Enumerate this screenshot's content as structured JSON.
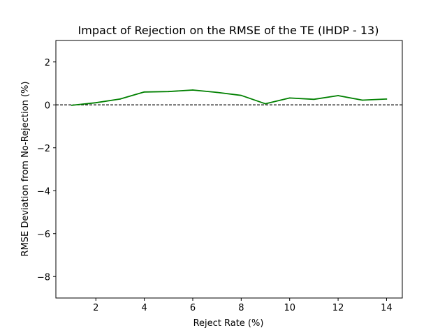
{
  "chart_data": {
    "type": "line",
    "title": "Impact of Rejection on the RMSE of the TE (IHDP - 13)",
    "xlabel": "Reject Rate (%)",
    "ylabel": "RMSE Deviation from No-Rejection (%)",
    "xlim": [
      0.35,
      14.65
    ],
    "ylim": [
      -9,
      3
    ],
    "xticks": [
      2,
      4,
      6,
      8,
      10,
      12,
      14
    ],
    "yticks": [
      -8,
      -6,
      -4,
      -2,
      0,
      2
    ],
    "xtick_labels": [
      "2",
      "4",
      "6",
      "8",
      "10",
      "12",
      "14"
    ],
    "ytick_labels": [
      "−8",
      "−6",
      "−4",
      "−2",
      "0",
      "2"
    ],
    "grid": false,
    "reference_line": {
      "y": 0,
      "style": "dashed",
      "color": "#000000"
    },
    "series": [
      {
        "color": "#008000",
        "x": [
          1,
          2,
          3,
          4,
          5,
          6,
          7,
          8,
          9,
          10,
          11,
          12,
          13,
          14
        ],
        "y": [
          -0.02,
          0.1,
          0.27,
          0.6,
          0.62,
          0.69,
          0.58,
          0.44,
          0.05,
          0.32,
          0.26,
          0.43,
          0.22,
          0.27
        ]
      }
    ]
  }
}
